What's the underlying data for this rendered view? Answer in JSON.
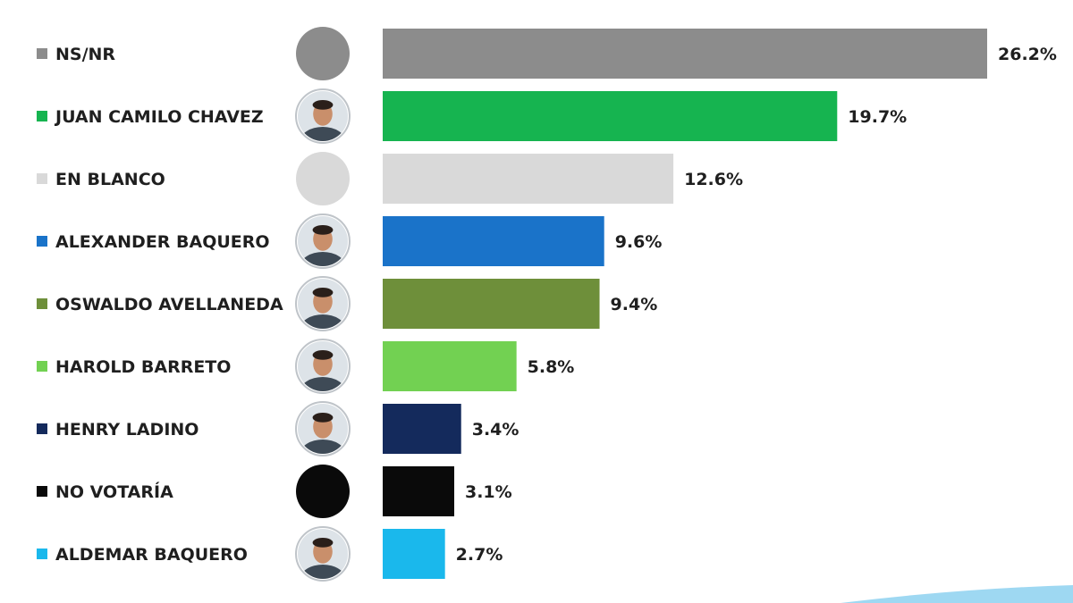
{
  "chart_data": {
    "type": "bar",
    "orientation": "horizontal",
    "categories": [
      "NS/NR",
      "JUAN CAMILO CHAVEZ",
      "EN BLANCO",
      "ALEXANDER BAQUERO",
      "OSWALDO AVELLANEDA",
      "HAROLD BARRETO",
      "HENRY LADINO",
      "NO VOTARÍA",
      "ALDEMAR BAQUERO"
    ],
    "values": [
      26.2,
      19.7,
      12.6,
      9.6,
      9.4,
      5.8,
      3.4,
      3.1,
      2.7
    ],
    "value_labels": [
      "26.2%",
      "19.7%",
      "12.6%",
      "9.6%",
      "9.4%",
      "5.8%",
      "3.4%",
      "3.1%",
      "2.7%"
    ],
    "colors": [
      "#8c8c8c",
      "#16b450",
      "#d9d9d9",
      "#1a73c9",
      "#6e8f3a",
      "#72d152",
      "#142a5c",
      "#0a0a0a",
      "#1ab8ec"
    ],
    "avatars": [
      "solid-gray-circle",
      "candidate-photo",
      "solid-light-gray-circle",
      "candidate-photo",
      "candidate-photo",
      "candidate-photo",
      "candidate-photo",
      "solid-black-circle",
      "candidate-photo"
    ],
    "xlim": [
      0,
      26.2
    ],
    "grid": false,
    "legend": "left, one colored square per category",
    "title": "",
    "xlabel": "",
    "ylabel": ""
  }
}
